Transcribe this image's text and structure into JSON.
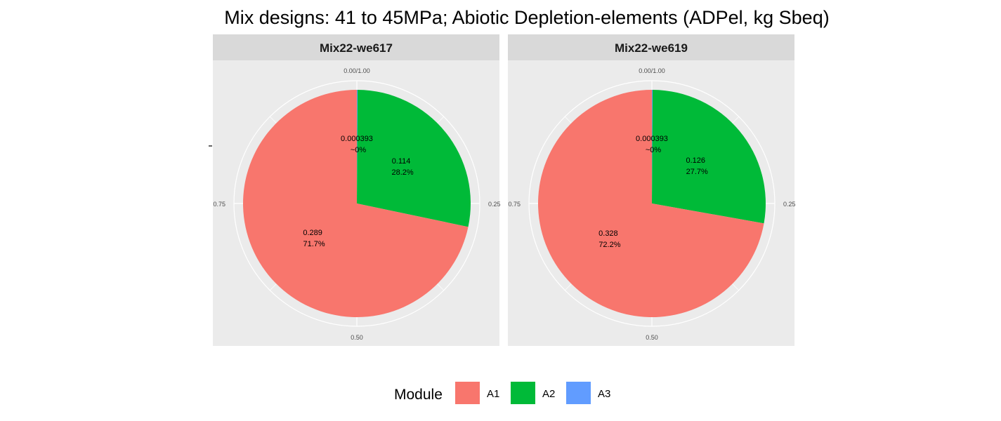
{
  "chart_data": {
    "type": "pie",
    "title": "Mix designs: 41 to 45MPa; Abiotic Depletion-elements (ADPel, kg Sbeq)",
    "theta_ticks": [
      "0.00/1.00",
      "0.25",
      "0.50",
      "0.75"
    ],
    "legend": {
      "title": "Module",
      "placement": "bottom",
      "items": [
        {
          "name": "A1",
          "color": "#F8766D"
        },
        {
          "name": "A2",
          "color": "#00BA38"
        },
        {
          "name": "A3",
          "color": "#619CFF"
        }
      ]
    },
    "panels": [
      {
        "strip": "Mix22-we617",
        "slices": [
          {
            "name": "A3",
            "value": 0.000393,
            "label": "0.000393",
            "pct": "~0%",
            "share": 0.001,
            "color": "#619CFF"
          },
          {
            "name": "A2",
            "value": 0.114,
            "label": "0.114",
            "pct": "28.2%",
            "share": 0.282,
            "color": "#00BA38"
          },
          {
            "name": "A1",
            "value": 0.289,
            "label": "0.289",
            "pct": "71.7%",
            "share": 0.717,
            "color": "#F8766D"
          }
        ]
      },
      {
        "strip": "Mix22-we619",
        "slices": [
          {
            "name": "A3",
            "value": 0.000393,
            "label": "0.000393",
            "pct": "~0%",
            "share": 0.001,
            "color": "#619CFF"
          },
          {
            "name": "A2",
            "value": 0.126,
            "label": "0.126",
            "pct": "27.7%",
            "share": 0.277,
            "color": "#00BA38"
          },
          {
            "name": "A1",
            "value": 0.328,
            "label": "0.328",
            "pct": "72.2%",
            "share": 0.722,
            "color": "#F8766D"
          }
        ]
      }
    ]
  }
}
